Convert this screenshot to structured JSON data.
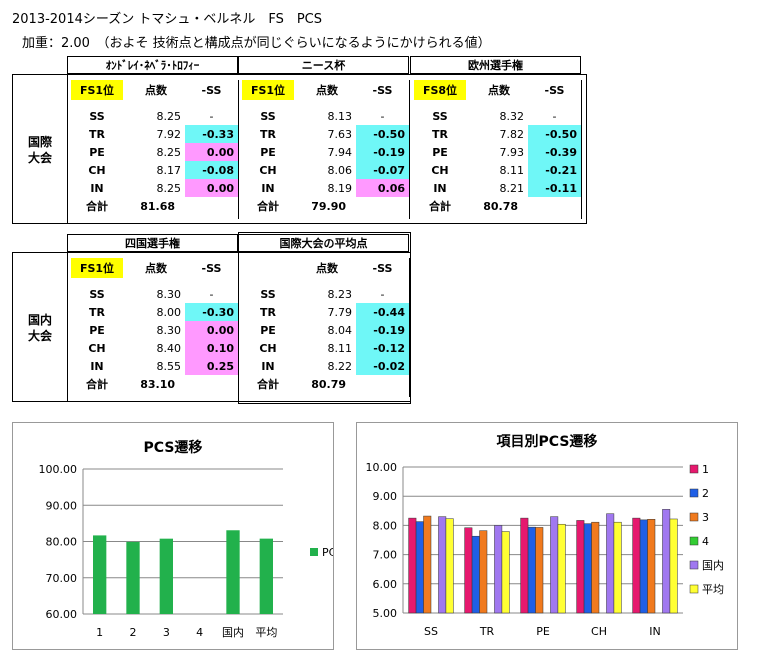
{
  "title": "2013-2014シーズン トマシュ・ベルネル　FS　PCS",
  "subtitle": "加重：2.00　（およそ 技術点と構成点が同じぐらいになるようにかけられる値）",
  "row_labels": {
    "intl": [
      "国際",
      "大会"
    ],
    "domestic": [
      "国内",
      "大会"
    ]
  },
  "col_headers": {
    "score": "点数",
    "diff": "-SS",
    "total": "合計"
  },
  "tables": [
    {
      "event": "ｵﾝﾄﾞﾚｲ･ﾈﾍﾞﾗ･ﾄﾛﾌｨｰ",
      "rank": "FS1位",
      "rows": [
        [
          "SS",
          "8.25",
          "-"
        ],
        [
          "TR",
          "7.92",
          "-0.33"
        ],
        [
          "PE",
          "8.25",
          "0.00"
        ],
        [
          "CH",
          "8.17",
          "-0.08"
        ],
        [
          "IN",
          "8.25",
          "0.00"
        ]
      ],
      "total": "81.68"
    },
    {
      "event": "ニース杯",
      "rank": "FS1位",
      "rows": [
        [
          "SS",
          "8.13",
          "-"
        ],
        [
          "TR",
          "7.63",
          "-0.50"
        ],
        [
          "PE",
          "7.94",
          "-0.19"
        ],
        [
          "CH",
          "8.06",
          "-0.07"
        ],
        [
          "IN",
          "8.19",
          "0.06"
        ]
      ],
      "total": "79.90"
    },
    {
      "event": "欧州選手権",
      "rank": "FS8位",
      "rows": [
        [
          "SS",
          "8.32",
          "-"
        ],
        [
          "TR",
          "7.82",
          "-0.50"
        ],
        [
          "PE",
          "7.93",
          "-0.39"
        ],
        [
          "CH",
          "8.11",
          "-0.21"
        ],
        [
          "IN",
          "8.21",
          "-0.11"
        ]
      ],
      "total": "80.78"
    },
    {
      "event": "四国選手権",
      "rank": "FS1位",
      "rows": [
        [
          "SS",
          "8.30",
          "-"
        ],
        [
          "TR",
          "8.00",
          "-0.30"
        ],
        [
          "PE",
          "8.30",
          "0.00"
        ],
        [
          "CH",
          "8.40",
          "0.10"
        ],
        [
          "IN",
          "8.55",
          "0.25"
        ]
      ],
      "total": "83.10"
    },
    {
      "event": "国際大会の平均点",
      "rank": "",
      "rows": [
        [
          "SS",
          "8.23",
          "-"
        ],
        [
          "TR",
          "7.79",
          "-0.44"
        ],
        [
          "PE",
          "8.04",
          "-0.19"
        ],
        [
          "CH",
          "8.11",
          "-0.12"
        ],
        [
          "IN",
          "8.22",
          "-0.02"
        ]
      ],
      "total": "80.79"
    }
  ],
  "colors": {
    "yellow": "#ffff00",
    "cyan": "#6ff7f7",
    "pink": "#ff99ff",
    "pcs_green": "#22b14c"
  },
  "chart_data": [
    {
      "type": "bar",
      "title": "PCS遷移",
      "categories": [
        "1",
        "2",
        "3",
        "4",
        "国内",
        "平均"
      ],
      "series": [
        {
          "name": "PCS",
          "values": [
            81.68,
            79.9,
            80.78,
            null,
            83.1,
            80.79
          ]
        }
      ],
      "ylim": [
        60,
        100
      ],
      "yticks": [
        "60.00",
        "70.00",
        "80.00",
        "90.00",
        "100.00"
      ],
      "grid": true,
      "legend": "right"
    },
    {
      "type": "bar",
      "title": "項目別PCS遷移",
      "categories": [
        "SS",
        "TR",
        "PE",
        "CH",
        "IN"
      ],
      "series": [
        {
          "name": "1",
          "color": "#e6196e",
          "values": [
            8.25,
            7.92,
            8.25,
            8.17,
            8.25
          ]
        },
        {
          "name": "2",
          "color": "#1f5fe6",
          "values": [
            8.13,
            7.63,
            7.94,
            8.06,
            8.19
          ]
        },
        {
          "name": "3",
          "color": "#f07a1e",
          "values": [
            8.32,
            7.82,
            7.93,
            8.11,
            8.21
          ]
        },
        {
          "name": "4",
          "color": "#33cc33",
          "values": [
            null,
            null,
            null,
            null,
            null
          ]
        },
        {
          "name": "国内",
          "color": "#a078f0",
          "values": [
            8.3,
            8.0,
            8.3,
            8.4,
            8.55
          ]
        },
        {
          "name": "平均",
          "color": "#ffff33",
          "values": [
            8.23,
            7.79,
            8.04,
            8.11,
            8.22
          ]
        }
      ],
      "ylim": [
        5,
        10
      ],
      "yticks": [
        "5.00",
        "6.00",
        "7.00",
        "8.00",
        "9.00",
        "10.00"
      ],
      "grid": true,
      "legend": "right"
    }
  ]
}
